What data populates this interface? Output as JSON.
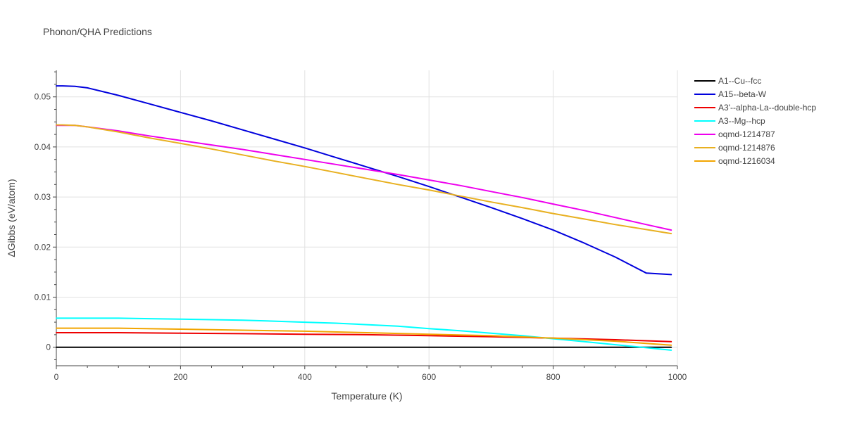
{
  "chart_data": {
    "type": "line",
    "title": "Phonon/QHA Predictions",
    "xlabel": "Temperature (K)",
    "ylabel": "ΔGibbs (eV/atom)",
    "xlim": [
      0,
      1000
    ],
    "ylim": [
      -0.0037,
      0.0553
    ],
    "x_ticks": [
      0,
      200,
      400,
      600,
      800,
      1000
    ],
    "x_tick_labels": [
      "0",
      "200",
      "400",
      "600",
      "800",
      "1000"
    ],
    "y_ticks": [
      0,
      0.01,
      0.02,
      0.03,
      0.04,
      0.05
    ],
    "y_tick_labels": [
      "0",
      "0.01",
      "0.02",
      "0.03",
      "0.04",
      "0.05"
    ],
    "grid": true,
    "legend_position": "top-right",
    "series": [
      {
        "name": "A1--Cu--fcc",
        "color": "#000000",
        "x": [
          0,
          990
        ],
        "y": [
          0,
          0
        ]
      },
      {
        "name": "A15--beta-W",
        "color": "#0000dd",
        "x": [
          0,
          10,
          30,
          50,
          100,
          150,
          200,
          250,
          300,
          350,
          400,
          450,
          500,
          550,
          600,
          650,
          700,
          750,
          800,
          850,
          900,
          950,
          990
        ],
        "y": [
          0.0522,
          0.0522,
          0.0521,
          0.0518,
          0.0503,
          0.0486,
          0.0469,
          0.0452,
          0.0434,
          0.0416,
          0.0398,
          0.0379,
          0.036,
          0.0341,
          0.0321,
          0.03,
          0.0279,
          0.0257,
          0.0234,
          0.0208,
          0.018,
          0.0148,
          0.0145
        ]
      },
      {
        "name": "A3'--alpha-La--double-hcp",
        "color": "#ee0000",
        "x": [
          0,
          100,
          200,
          300,
          400,
          500,
          600,
          700,
          800,
          900,
          990
        ],
        "y": [
          0.0029,
          0.0029,
          0.0028,
          0.0027,
          0.0026,
          0.0025,
          0.0023,
          0.0021,
          0.0018,
          0.0015,
          0.0011
        ]
      },
      {
        "name": "A3--Mg--hcp",
        "color": "#00ffff",
        "x": [
          0,
          50,
          100,
          150,
          200,
          250,
          300,
          350,
          400,
          450,
          500,
          550,
          600,
          650,
          700,
          750,
          800,
          850,
          900,
          950,
          990
        ],
        "y": [
          0.0058,
          0.0058,
          0.0058,
          0.0057,
          0.0056,
          0.0055,
          0.0054,
          0.0052,
          0.005,
          0.0048,
          0.0045,
          0.0042,
          0.0037,
          0.0033,
          0.0028,
          0.0023,
          0.0017,
          0.0011,
          0.0005,
          -0.0001,
          -0.0006
        ]
      },
      {
        "name": "oqmd-1214787",
        "color": "#ee00ee",
        "x": [
          0,
          10,
          30,
          50,
          100,
          150,
          200,
          250,
          300,
          350,
          400,
          450,
          500,
          550,
          600,
          650,
          700,
          750,
          800,
          850,
          900,
          950,
          990
        ],
        "y": [
          0.0443,
          0.0443,
          0.0443,
          0.044,
          0.0432,
          0.0422,
          0.0413,
          0.0404,
          0.0395,
          0.0385,
          0.0375,
          0.0365,
          0.0355,
          0.0345,
          0.0334,
          0.0323,
          0.0311,
          0.0299,
          0.0286,
          0.0273,
          0.0259,
          0.0245,
          0.0234
        ]
      },
      {
        "name": "oqmd-1214876",
        "color": "#e8b020",
        "x": [
          0,
          10,
          30,
          50,
          100,
          150,
          200,
          250,
          300,
          350,
          400,
          450,
          500,
          550,
          600,
          650,
          700,
          750,
          800,
          850,
          900,
          950,
          990
        ],
        "y": [
          0.0444,
          0.0444,
          0.0443,
          0.044,
          0.043,
          0.0418,
          0.0407,
          0.0396,
          0.0384,
          0.0372,
          0.0361,
          0.0349,
          0.0337,
          0.0325,
          0.0314,
          0.0302,
          0.029,
          0.0279,
          0.0267,
          0.0256,
          0.0245,
          0.0235,
          0.0227
        ]
      },
      {
        "name": "oqmd-1216034",
        "color": "#f2a500",
        "x": [
          0,
          100,
          200,
          300,
          400,
          500,
          600,
          700,
          800,
          900,
          990
        ],
        "y": [
          0.0038,
          0.0038,
          0.0036,
          0.0034,
          0.0032,
          0.0029,
          0.0026,
          0.0023,
          0.0018,
          0.0012,
          0.0004
        ]
      }
    ]
  }
}
